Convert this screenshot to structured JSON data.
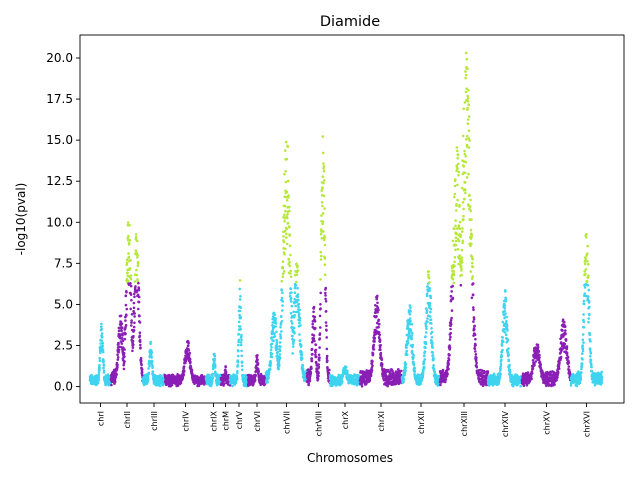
{
  "chart_data": {
    "type": "scatter",
    "title": "Diamide",
    "xlabel": "Chromosomes",
    "ylabel": "-log10(pval)",
    "ylim": [
      -1.0,
      21.4
    ],
    "yticks": [
      "0.0",
      "2.5",
      "5.0",
      "7.5",
      "10.0",
      "12.5",
      "15.0",
      "17.5",
      "20.0"
    ],
    "ytick_values": [
      0,
      2.5,
      5,
      7.5,
      10,
      12.5,
      15,
      17.5,
      20
    ],
    "grid": false,
    "legend": "none",
    "significance_threshold": 6.3,
    "colors": {
      "odd_chromosomes": "#3fd4ef",
      "even_chromosomes": "#8a1fb5",
      "significant": "#b6e83b"
    },
    "chromosomes": [
      {
        "name": "chrI",
        "bg": 0.3,
        "peaks": [
          [
            0.55,
            3.8
          ]
        ]
      },
      {
        "name": "chrII",
        "bg": 0.5,
        "peaks": [
          [
            0.3,
            4.6
          ],
          [
            0.55,
            10.4
          ],
          [
            0.8,
            9.3
          ]
        ]
      },
      {
        "name": "chrIII",
        "bg": 0.3,
        "peaks": [
          [
            0.35,
            2.5
          ]
        ]
      },
      {
        "name": "chrIV",
        "bg": 0.3,
        "peaks": [
          [
            0.55,
            2.5
          ]
        ]
      },
      {
        "name": "chrIX",
        "bg": 0.3,
        "peaks": [
          [
            0.55,
            2.0
          ]
        ]
      },
      {
        "name": "chrM",
        "bg": 0.3,
        "peaks": [
          [
            0.5,
            1.0
          ]
        ]
      },
      {
        "name": "chrV",
        "bg": 0.3,
        "peaks": [
          [
            0.55,
            6.2
          ]
        ]
      },
      {
        "name": "chrVI",
        "bg": 0.3,
        "peaks": [
          [
            0.5,
            1.8
          ]
        ]
      },
      {
        "name": "chrVII",
        "bg": 0.5,
        "peaks": [
          [
            0.2,
            4.5
          ],
          [
            0.5,
            15.5
          ],
          [
            0.75,
            7.5
          ]
        ]
      },
      {
        "name": "chrVIII",
        "bg": 0.5,
        "peaks": [
          [
            0.3,
            5.0
          ],
          [
            0.7,
            15.9
          ]
        ]
      },
      {
        "name": "chrX",
        "bg": 0.3,
        "peaks": [
          [
            0.5,
            1.2
          ]
        ]
      },
      {
        "name": "chrXI",
        "bg": 0.5,
        "peaks": [
          [
            0.4,
            5.4
          ]
        ]
      },
      {
        "name": "chrXII",
        "bg": 0.3,
        "peaks": [
          [
            0.2,
            5.0
          ],
          [
            0.7,
            6.9
          ]
        ]
      },
      {
        "name": "chrXIII",
        "bg": 0.5,
        "peaks": [
          [
            0.35,
            14.5
          ],
          [
            0.55,
            20.3
          ]
        ]
      },
      {
        "name": "chrXIV",
        "bg": 0.3,
        "peaks": [
          [
            0.5,
            5.7
          ]
        ]
      },
      {
        "name": "chrXV",
        "bg": 0.4,
        "peaks": [
          [
            0.3,
            2.6
          ],
          [
            0.85,
            3.9
          ]
        ]
      },
      {
        "name": "chrXVI",
        "bg": 0.4,
        "peaks": [
          [
            0.5,
            9.6
          ]
        ]
      }
    ]
  }
}
